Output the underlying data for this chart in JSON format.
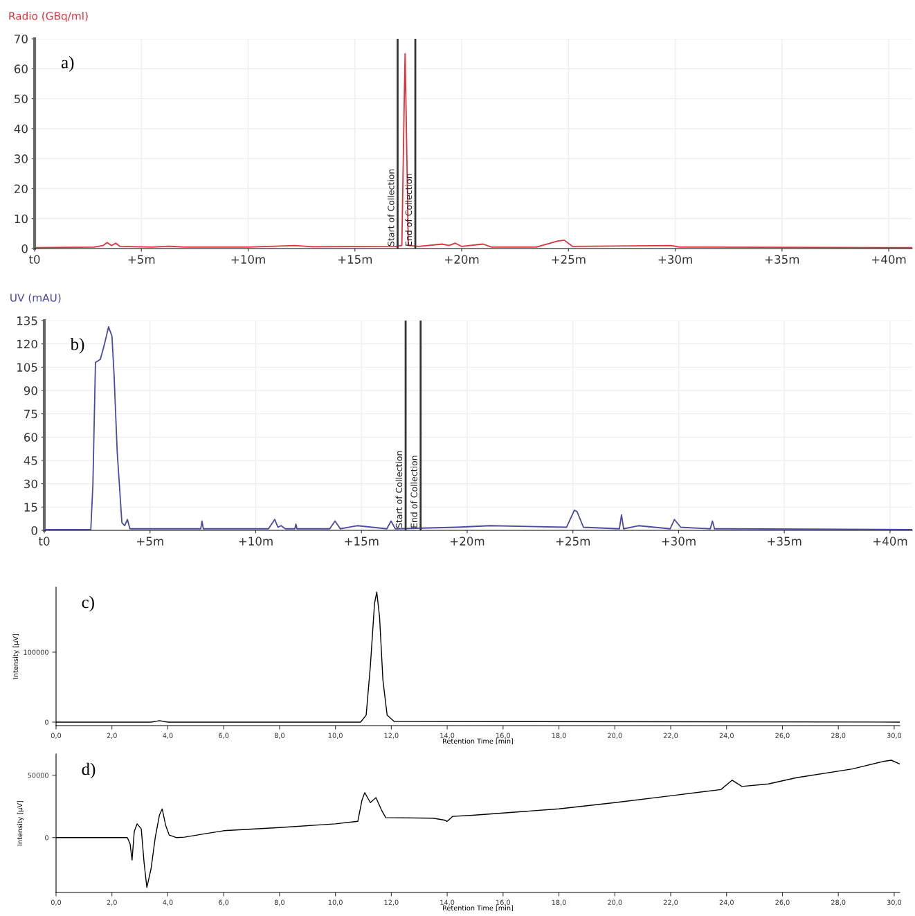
{
  "chart_data": [
    {
      "type": "line",
      "ylabel": "Radio (GBq/ml)",
      "annotations": [
        "a)"
      ],
      "grid": true,
      "xlim": [
        0,
        41.1
      ],
      "ylim": [
        0,
        70
      ],
      "xticks": [
        {
          "value": 0,
          "label": "t0"
        },
        {
          "value": 5,
          "label": "+5m"
        },
        {
          "value": 10,
          "label": "+10m"
        },
        {
          "value": 15,
          "label": "+15m"
        },
        {
          "value": 20,
          "label": "+20m"
        },
        {
          "value": 25,
          "label": "+25m"
        },
        {
          "value": 30,
          "label": "+30m"
        },
        {
          "value": 35,
          "label": "+35m"
        },
        {
          "value": 40,
          "label": "+40m"
        }
      ],
      "yticks": [
        0,
        10,
        20,
        30,
        40,
        50,
        60,
        70
      ],
      "ref_lines": [
        {
          "axis": "x",
          "value": 17.0,
          "label": "Start of Collection",
          "color": "#333333"
        },
        {
          "axis": "x",
          "value": 17.83,
          "label": "End of Collection",
          "color": "#333333"
        }
      ],
      "series": [
        {
          "color": "#e0303a",
          "x": [
            0,
            2.8,
            3.2,
            3.4,
            3.6,
            3.8,
            4.0,
            5.5,
            6.3,
            7.0,
            10.0,
            12.2,
            13.0,
            16.9,
            17.2,
            17.3,
            17.35,
            17.4,
            17.5,
            18.0,
            19.1,
            19.4,
            19.7,
            20.0,
            21.0,
            21.4,
            23.5,
            24.5,
            24.8,
            25.2,
            29.8,
            30.2,
            41.1
          ],
          "values": [
            0.3,
            0.5,
            1.0,
            2.0,
            1.0,
            1.8,
            0.7,
            0.5,
            0.8,
            0.5,
            0.5,
            1.0,
            0.6,
            0.7,
            1.0,
            45,
            65,
            45,
            1.0,
            0.7,
            1.5,
            1.0,
            1.8,
            0.7,
            1.5,
            0.5,
            0.5,
            2.5,
            2.8,
            0.7,
            1.0,
            0.5,
            0.3
          ]
        }
      ]
    },
    {
      "type": "line",
      "ylabel": "UV (mAU)",
      "annotations": [
        "b)"
      ],
      "grid": true,
      "xlim": [
        0,
        41.05
      ],
      "ylim": [
        0,
        135
      ],
      "xticks": [
        {
          "value": 0,
          "label": "t0"
        },
        {
          "value": 5,
          "label": "+5m"
        },
        {
          "value": 10,
          "label": "+10m"
        },
        {
          "value": 15,
          "label": "+15m"
        },
        {
          "value": 20,
          "label": "+20m"
        },
        {
          "value": 25,
          "label": "+25m"
        },
        {
          "value": 30,
          "label": "+30m"
        },
        {
          "value": 35,
          "label": "+35m"
        },
        {
          "value": 40,
          "label": "+40m"
        }
      ],
      "yticks": [
        0,
        15,
        30,
        45,
        60,
        75,
        90,
        105,
        120,
        135
      ],
      "ref_lines": [
        {
          "axis": "x",
          "value": 17.09,
          "label": "Start of Collection",
          "color": "#333333"
        },
        {
          "axis": "x",
          "value": 17.8,
          "label": "End of Collection",
          "color": "#333333"
        }
      ],
      "series": [
        {
          "color": "#4a4aa0",
          "x": [
            0,
            2.2,
            2.3,
            2.42,
            2.65,
            2.85,
            3.04,
            3.2,
            3.3,
            3.45,
            3.67,
            3.8,
            3.93,
            4.05,
            5.4,
            7.4,
            7.46,
            7.52,
            10.6,
            10.9,
            11.05,
            11.2,
            11.4,
            11.85,
            11.9,
            11.95,
            13.5,
            13.75,
            14.0,
            14.8,
            16.2,
            16.4,
            16.6,
            19.5,
            21.1,
            24.7,
            25.07,
            25.2,
            25.5,
            27.2,
            27.3,
            27.4,
            28.1,
            29.6,
            29.8,
            30.1,
            31.5,
            31.6,
            31.7,
            32.1,
            41.05
          ],
          "values": [
            0.5,
            0.5,
            30,
            108,
            110,
            120,
            131,
            125,
            100,
            50,
            5,
            3,
            7,
            1,
            1,
            1,
            6,
            1,
            1,
            7,
            2,
            3,
            1,
            1,
            4,
            1,
            1,
            6,
            1,
            3,
            1,
            6,
            1,
            2,
            3,
            2,
            13,
            12,
            2,
            1,
            10,
            1,
            3,
            1,
            7,
            2,
            1,
            6,
            1,
            1,
            0.5
          ]
        }
      ]
    },
    {
      "type": "line",
      "ylabel": "Intensity [µV]",
      "xlabel": "Retention Time [min]",
      "annotations": [
        "c)"
      ],
      "xlim": [
        0,
        30.2
      ],
      "ylim": [
        -5000,
        193000
      ],
      "xticks": [
        {
          "value": 0,
          "label": "0,0"
        },
        {
          "value": 2,
          "label": "2,0"
        },
        {
          "value": 4,
          "label": "4,0"
        },
        {
          "value": 6,
          "label": "6,0"
        },
        {
          "value": 8,
          "label": "8,0"
        },
        {
          "value": 10,
          "label": "10,0"
        },
        {
          "value": 12,
          "label": "12,0"
        },
        {
          "value": 14,
          "label": "14,0"
        },
        {
          "value": 16,
          "label": "16,0"
        },
        {
          "value": 18,
          "label": "18,0"
        },
        {
          "value": 20,
          "label": "20,0"
        },
        {
          "value": 22,
          "label": "22,0"
        },
        {
          "value": 24,
          "label": "24,0"
        },
        {
          "value": 26,
          "label": "26,0"
        },
        {
          "value": 28,
          "label": "28,0"
        },
        {
          "value": 30,
          "label": "30,0"
        }
      ],
      "yticks": [
        0,
        100000
      ],
      "series": [
        {
          "color": "#000000",
          "x": [
            0,
            3.4,
            3.7,
            4.0,
            10.9,
            11.1,
            11.25,
            11.4,
            11.48,
            11.58,
            11.7,
            11.85,
            12.1,
            30.2
          ],
          "values": [
            0,
            0,
            2000,
            0,
            0,
            10000,
            80000,
            170000,
            186000,
            150000,
            60000,
            10000,
            1000,
            0
          ]
        }
      ]
    },
    {
      "type": "line",
      "ylabel": "Intensity [µV]",
      "xlabel": "Retention Time [min]",
      "annotations": [
        "d)"
      ],
      "xlim": [
        0,
        30.2
      ],
      "ylim": [
        -44000,
        67000
      ],
      "xticks": [
        {
          "value": 0,
          "label": "0,0"
        },
        {
          "value": 2,
          "label": "2,0"
        },
        {
          "value": 4,
          "label": "4,0"
        },
        {
          "value": 6,
          "label": "6,0"
        },
        {
          "value": 8,
          "label": "8,0"
        },
        {
          "value": 10,
          "label": "10,0"
        },
        {
          "value": 12,
          "label": "12,0"
        },
        {
          "value": 14,
          "label": "14,0"
        },
        {
          "value": 16,
          "label": "16,0"
        },
        {
          "value": 18,
          "label": "18,0"
        },
        {
          "value": 20,
          "label": "20,0"
        },
        {
          "value": 22,
          "label": "22,0"
        },
        {
          "value": 24,
          "label": "24,0"
        },
        {
          "value": 26,
          "label": "26,0"
        },
        {
          "value": 28,
          "label": "28,0"
        },
        {
          "value": 30,
          "label": "30,0"
        }
      ],
      "yticks": [
        0,
        50000
      ],
      "series": [
        {
          "color": "#000000",
          "x": [
            0,
            2.55,
            2.65,
            2.72,
            2.8,
            2.9,
            3.05,
            3.15,
            3.25,
            3.4,
            3.55,
            3.7,
            3.8,
            3.92,
            4.05,
            4.3,
            4.6,
            5.3,
            6.0,
            8.0,
            10.0,
            10.8,
            10.95,
            11.05,
            11.25,
            11.45,
            11.65,
            11.8,
            13.5,
            13.9,
            14.0,
            14.2,
            15.0,
            18.0,
            20.0,
            22.0,
            23.8,
            24.2,
            24.55,
            25.5,
            26.5,
            28.5,
            29.6,
            29.9,
            30.2
          ],
          "values": [
            0,
            0,
            -5000,
            -18000,
            5000,
            11000,
            7000,
            -20000,
            -40000,
            -25000,
            0,
            18000,
            23000,
            10000,
            2000,
            0,
            300,
            3000,
            5500,
            8000,
            11000,
            13000,
            30000,
            36000,
            28000,
            32000,
            22000,
            16000,
            15500,
            14000,
            13000,
            17000,
            18000,
            23000,
            28000,
            33500,
            38500,
            46000,
            41000,
            43000,
            48000,
            55000,
            61000,
            62000,
            59000
          ]
        }
      ]
    }
  ]
}
